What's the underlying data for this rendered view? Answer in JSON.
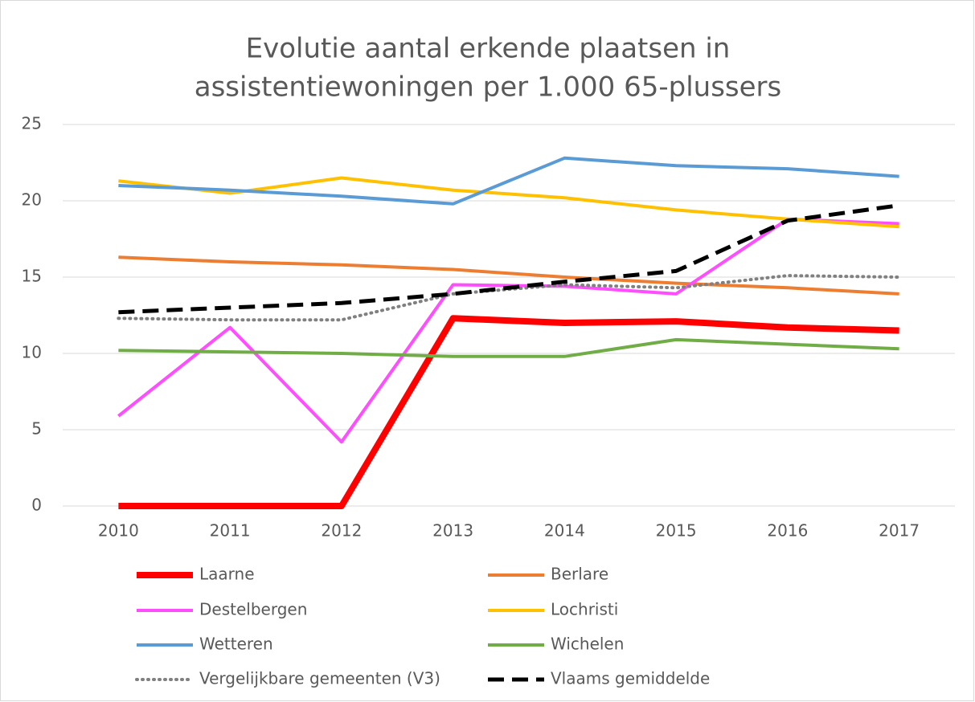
{
  "chart_data": {
    "type": "line",
    "title": [
      "Evolutie aantal erkende plaatsen in",
      "assistentiewoningen per 1.000 65-plussers"
    ],
    "categories": [
      "2010",
      "2011",
      "2012",
      "2013",
      "2014",
      "2015",
      "2016",
      "2017"
    ],
    "ylim": [
      0,
      25
    ],
    "yticks": [
      0,
      5,
      10,
      15,
      20,
      25
    ],
    "grid": true,
    "legend": "bottom",
    "series": [
      {
        "name": "Laarne",
        "color": "#ff0000",
        "style": "thick",
        "values": [
          0,
          0,
          0,
          12.3,
          12.0,
          12.1,
          11.7,
          11.5
        ]
      },
      {
        "name": "Berlare",
        "color": "#ed7d31",
        "style": "solid",
        "values": [
          16.3,
          16.0,
          15.8,
          15.5,
          15.0,
          14.6,
          14.3,
          13.9
        ]
      },
      {
        "name": "Destelbergen",
        "color": "#ff4dff",
        "style": "solid",
        "values": [
          5.9,
          11.7,
          4.2,
          14.5,
          14.4,
          13.9,
          18.8,
          18.5
        ]
      },
      {
        "name": "Lochristi",
        "color": "#ffc000",
        "style": "solid",
        "values": [
          21.3,
          20.5,
          21.5,
          20.7,
          20.2,
          19.4,
          18.8,
          18.3
        ]
      },
      {
        "name": "Wetteren",
        "color": "#5b9bd5",
        "style": "solid",
        "values": [
          21.0,
          20.7,
          20.3,
          19.8,
          22.8,
          22.3,
          22.1,
          21.6
        ]
      },
      {
        "name": "Wichelen",
        "color": "#70ad47",
        "style": "solid",
        "values": [
          10.2,
          10.1,
          10.0,
          9.8,
          9.8,
          10.9,
          10.6,
          10.3
        ]
      },
      {
        "name": "Vergelijkbare gemeenten (V3)",
        "color": "#808080",
        "style": "dotted",
        "values": [
          12.3,
          12.2,
          12.2,
          13.9,
          14.5,
          14.3,
          15.1,
          15.0
        ]
      },
      {
        "name": "Vlaams gemiddelde",
        "color": "#000000",
        "style": "dashed",
        "values": [
          12.7,
          13.0,
          13.3,
          13.9,
          14.7,
          15.4,
          18.7,
          19.7
        ]
      }
    ]
  }
}
